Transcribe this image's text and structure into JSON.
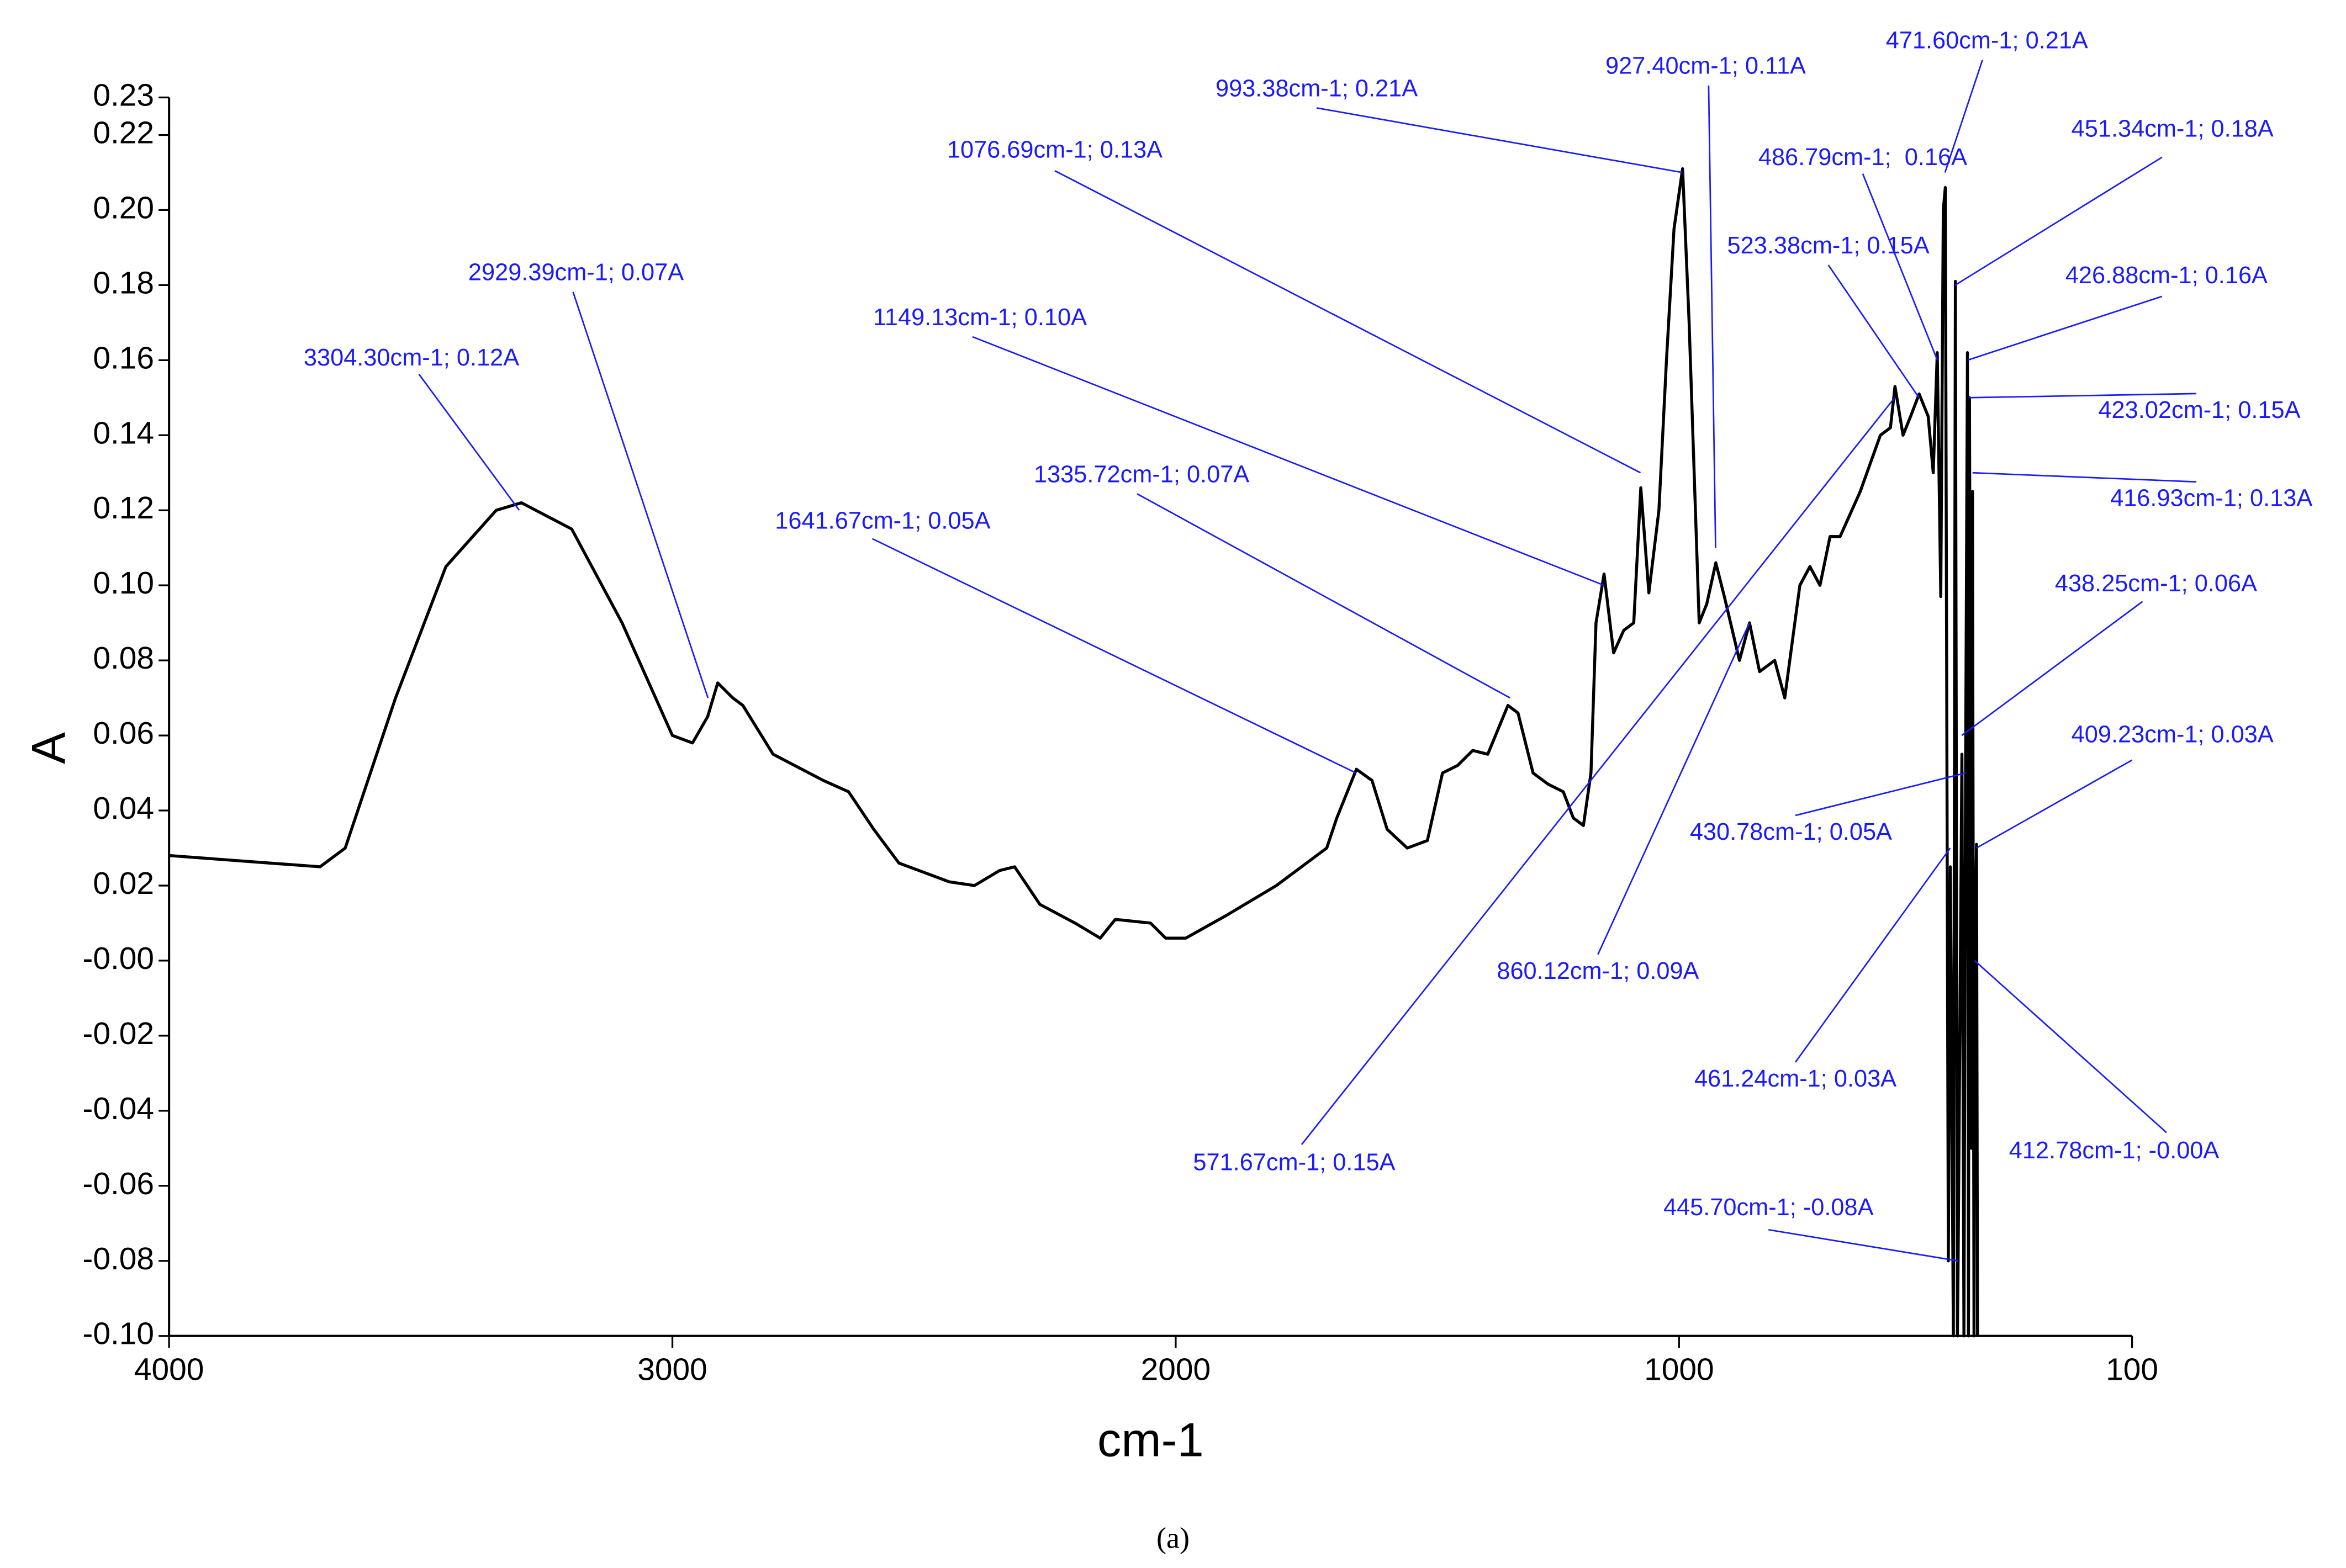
{
  "chart_data": {
    "type": "line",
    "xlabel": "cm-1",
    "ylabel": "A",
    "caption": "(a)",
    "xlim": [
      4000,
      100
    ],
    "xticks": [
      4000,
      3000,
      2000,
      1000,
      100
    ],
    "ylim": [
      -0.1,
      0.23
    ],
    "yticks": [
      0.23,
      0.22,
      {
        "value": 0.2,
        "label": "0.20"
      },
      0.18,
      0.16,
      0.14,
      0.12,
      {
        "value": 0.1,
        "label": "0.10"
      },
      0.08,
      0.06,
      0.04,
      0.02,
      {
        "value": 0,
        "label": "-0.00"
      },
      -0.02,
      -0.04,
      -0.06,
      -0.08,
      {
        "value": -0.1,
        "label": "-0.10"
      }
    ],
    "x": [
      4000,
      3700,
      3650,
      3550,
      3450,
      3350,
      3300,
      3200,
      3100,
      3000,
      2960,
      2930,
      2910,
      2880,
      2860,
      2800,
      2700,
      2650,
      2600,
      2550,
      2450,
      2400,
      2350,
      2320,
      2270,
      2200,
      2150,
      2120,
      2050,
      2020,
      1980,
      1900,
      1800,
      1700,
      1680,
      1641,
      1610,
      1580,
      1540,
      1500,
      1470,
      1440,
      1410,
      1380,
      1340,
      1320,
      1290,
      1260,
      1230,
      1210,
      1190,
      1175,
      1165,
      1149,
      1130,
      1110,
      1090,
      1076,
      1060,
      1040,
      1025,
      1010,
      993,
      980,
      960,
      945,
      927,
      910,
      880,
      860,
      840,
      810,
      790,
      760,
      740,
      720,
      700,
      680,
      640,
      600,
      580,
      571,
      555,
      540,
      523,
      505,
      495,
      487,
      480,
      475,
      471,
      465,
      461,
      455,
      451,
      447,
      445.7,
      438,
      434,
      430.8,
      427,
      425,
      423,
      419,
      417,
      414,
      412.8,
      409,
      407
    ],
    "series": [
      {
        "color": "#000000",
        "values": [
          0.028,
          0.025,
          0.03,
          0.07,
          0.105,
          0.12,
          0.122,
          0.115,
          0.09,
          0.06,
          0.058,
          0.065,
          0.074,
          0.07,
          0.068,
          0.055,
          0.048,
          0.045,
          0.035,
          0.026,
          0.021,
          0.02,
          0.024,
          0.025,
          0.015,
          0.01,
          0.006,
          0.011,
          0.01,
          0.006,
          0.006,
          0.012,
          0.02,
          0.03,
          0.038,
          0.051,
          0.048,
          0.035,
          0.03,
          0.032,
          0.05,
          0.052,
          0.056,
          0.055,
          0.068,
          0.066,
          0.05,
          0.047,
          0.045,
          0.038,
          0.036,
          0.05,
          0.09,
          0.103,
          0.082,
          0.088,
          0.09,
          0.126,
          0.098,
          0.12,
          0.16,
          0.195,
          0.211,
          0.17,
          0.09,
          0.095,
          0.106,
          0.097,
          0.08,
          0.09,
          0.077,
          0.08,
          0.07,
          0.1,
          0.105,
          0.1,
          0.113,
          0.113,
          0.125,
          0.14,
          0.142,
          0.153,
          0.14,
          0.145,
          0.151,
          0.145,
          0.13,
          0.162,
          0.097,
          0.2,
          0.206,
          -0.08,
          0.025,
          -0.1,
          0.181,
          -0.1,
          -0.083,
          0.055,
          -0.1,
          0.048,
          0.162,
          -0.1,
          0.15,
          -0.05,
          0.125,
          -0.1,
          -0.003,
          0.031,
          -0.1
        ]
      }
    ],
    "annotation_color": "#1a1aff",
    "annotations": [
      {
        "text": "3304.30cm-1; 0.12A",
        "x": 3304.3,
        "y": 0.12
      },
      {
        "text": "2929.39cm-1; 0.07A",
        "x": 2929.39,
        "y": 0.07
      },
      {
        "text": "1641.67cm-1; 0.05A",
        "x": 1641.67,
        "y": 0.05
      },
      {
        "text": "1335.72cm-1; 0.07A",
        "x": 1335.72,
        "y": 0.07
      },
      {
        "text": "1149.13cm-1; 0.10A",
        "x": 1149.13,
        "y": 0.1
      },
      {
        "text": "1076.69cm-1; 0.13A",
        "x": 1076.69,
        "y": 0.13
      },
      {
        "text": "993.38cm-1; 0.21A",
        "x": 993.38,
        "y": 0.21
      },
      {
        "text": "927.40cm-1; 0.11A",
        "x": 927.4,
        "y": 0.11
      },
      {
        "text": "860.12cm-1; 0.09A",
        "x": 860.12,
        "y": 0.09
      },
      {
        "text": "571.67cm-1; 0.15A",
        "x": 571.67,
        "y": 0.15
      },
      {
        "text": "523.38cm-1; 0.15A",
        "x": 523.38,
        "y": 0.15
      },
      {
        "text": "486.79cm-1;  0.16A",
        "x": 486.79,
        "y": 0.16
      },
      {
        "text": "471.60cm-1; 0.21A",
        "x": 471.6,
        "y": 0.21
      },
      {
        "text": "451.34cm-1; 0.18A",
        "x": 451.34,
        "y": 0.18
      },
      {
        "text": "426.88cm-1; 0.16A",
        "x": 426.88,
        "y": 0.16
      },
      {
        "text": "423.02cm-1; 0.15A",
        "x": 423.02,
        "y": 0.15
      },
      {
        "text": "416.93cm-1; 0.13A",
        "x": 416.93,
        "y": 0.13
      },
      {
        "text": "438.25cm-1; 0.06A",
        "x": 438.25,
        "y": 0.06
      },
      {
        "text": "409.23cm-1; 0.03A",
        "x": 409.23,
        "y": 0.03
      },
      {
        "text": "430.78cm-1; 0.05A",
        "x": 430.78,
        "y": 0.05
      },
      {
        "text": "461.24cm-1; 0.03A",
        "x": 461.24,
        "y": 0.03
      },
      {
        "text": "412.78cm-1; -0.00A",
        "x": 412.78,
        "y": 0
      },
      {
        "text": "445.70cm-1; -0.08A",
        "x": 445.7,
        "y": -0.08
      }
    ]
  }
}
